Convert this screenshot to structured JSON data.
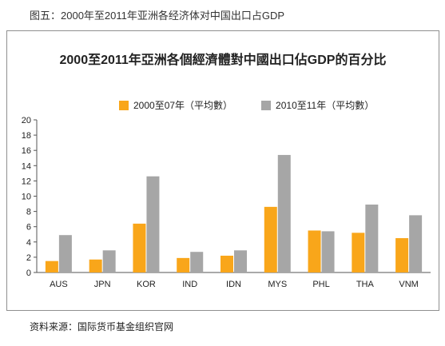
{
  "caption": "图五：2000年至2011年亚洲各经济体对中国出口占GDP",
  "source": "资料来源：国际货币基金组织官网",
  "chart_data": {
    "type": "bar",
    "title": "2000至2011年亞洲各個經濟體對中國出口佔GDP的百分比",
    "xlabel": "",
    "ylabel": "",
    "categories": [
      "AUS",
      "JPN",
      "KOR",
      "IND",
      "IDN",
      "MYS",
      "PHL",
      "THA",
      "VNM"
    ],
    "series": [
      {
        "name": "2000至07年（平均數）",
        "color": "#f9a61a",
        "values": [
          1.5,
          1.7,
          6.4,
          1.9,
          2.2,
          8.6,
          5.5,
          5.2,
          4.5
        ]
      },
      {
        "name": "2010至11年（平均數）",
        "color": "#a6a6a6",
        "values": [
          4.9,
          2.9,
          12.6,
          2.7,
          2.9,
          15.4,
          5.4,
          8.9,
          7.5
        ]
      }
    ],
    "ylim": [
      0,
      20
    ],
    "yticks": [
      0,
      2,
      4,
      6,
      8,
      10,
      12,
      14,
      16,
      18,
      20
    ],
    "grid": false,
    "legend_position": "top"
  }
}
